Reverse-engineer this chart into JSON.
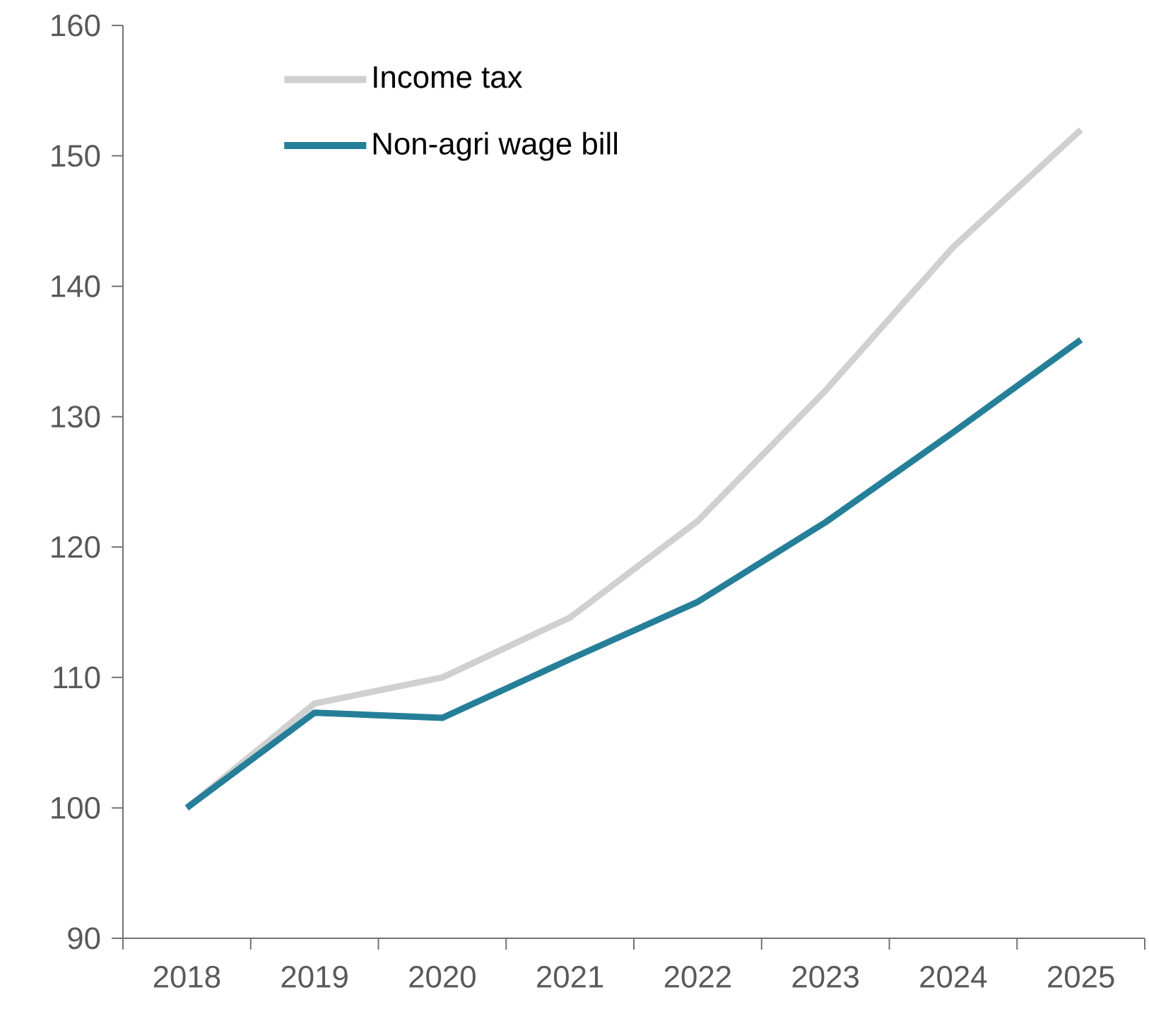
{
  "chart_data": {
    "type": "line",
    "categories": [
      "2018",
      "2019",
      "2020",
      "2021",
      "2022",
      "2023",
      "2024",
      "2025"
    ],
    "series": [
      {
        "name": "Income tax",
        "color": "#d0d0d0",
        "values": [
          100,
          108,
          110,
          114.6,
          122,
          132,
          143,
          152
        ]
      },
      {
        "name": "Non-agri wage bill",
        "color": "#267f99",
        "values": [
          100,
          107.3,
          106.9,
          111.4,
          115.8,
          121.9,
          128.8,
          135.9
        ]
      }
    ],
    "ylim": [
      90,
      160
    ],
    "yticks": [
      90,
      100,
      110,
      120,
      130,
      140,
      150,
      160
    ],
    "grid": false,
    "legend": "top left",
    "marker": "none",
    "line_style": "solid"
  }
}
